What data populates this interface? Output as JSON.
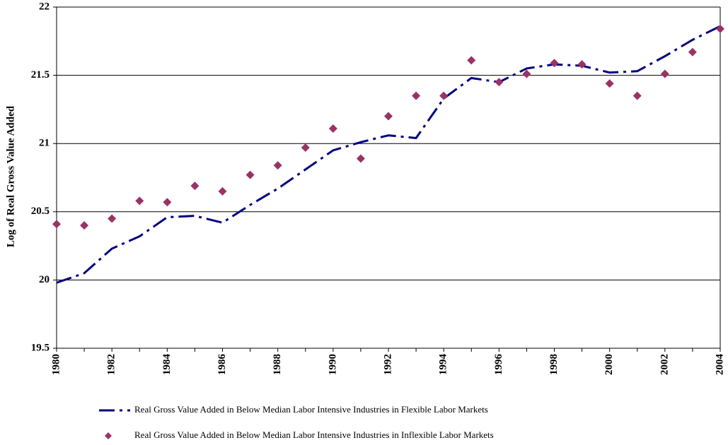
{
  "chart_data": {
    "type": "line",
    "y_label": "Log of Real Gross Value Added",
    "x": [
      1980,
      1981,
      1982,
      1983,
      1984,
      1985,
      1986,
      1987,
      1988,
      1989,
      1990,
      1991,
      1992,
      1993,
      1994,
      1995,
      1996,
      1997,
      1998,
      1999,
      2000,
      2001,
      2002,
      2003,
      2004
    ],
    "xlim": [
      1980,
      2004
    ],
    "xticks": [
      1980,
      1982,
      1984,
      1986,
      1988,
      1990,
      1992,
      1994,
      1996,
      1998,
      2000,
      2002,
      2004
    ],
    "ylim": [
      19.5,
      22
    ],
    "yticks": [
      19.5,
      20,
      20.5,
      21,
      21.5,
      22
    ],
    "grid": true,
    "series": [
      {
        "name": "Real Gross Value Added in Below Median Labor Intensive Industries in Flexible Labor Markets",
        "color": "#000080",
        "style": "line",
        "values": [
          19.98,
          20.05,
          20.23,
          20.32,
          20.46,
          20.47,
          20.42,
          20.55,
          20.67,
          20.81,
          20.95,
          21.01,
          21.06,
          21.04,
          21.33,
          21.48,
          21.45,
          21.55,
          21.58,
          21.57,
          21.52,
          21.53,
          21.64,
          21.76,
          21.86
        ]
      },
      {
        "name": "Real Gross Value Added in Below Median Labor Intensive Industries in Inflexible Labor Markets",
        "color": "#993366",
        "style": "marker",
        "values": [
          20.41,
          20.4,
          20.45,
          20.58,
          20.57,
          20.69,
          20.65,
          20.77,
          20.84,
          20.97,
          21.11,
          20.89,
          21.2,
          21.35,
          21.35,
          21.61,
          21.45,
          21.51,
          21.59,
          21.58,
          21.44,
          21.35,
          21.51,
          21.67,
          21.84
        ]
      }
    ]
  }
}
